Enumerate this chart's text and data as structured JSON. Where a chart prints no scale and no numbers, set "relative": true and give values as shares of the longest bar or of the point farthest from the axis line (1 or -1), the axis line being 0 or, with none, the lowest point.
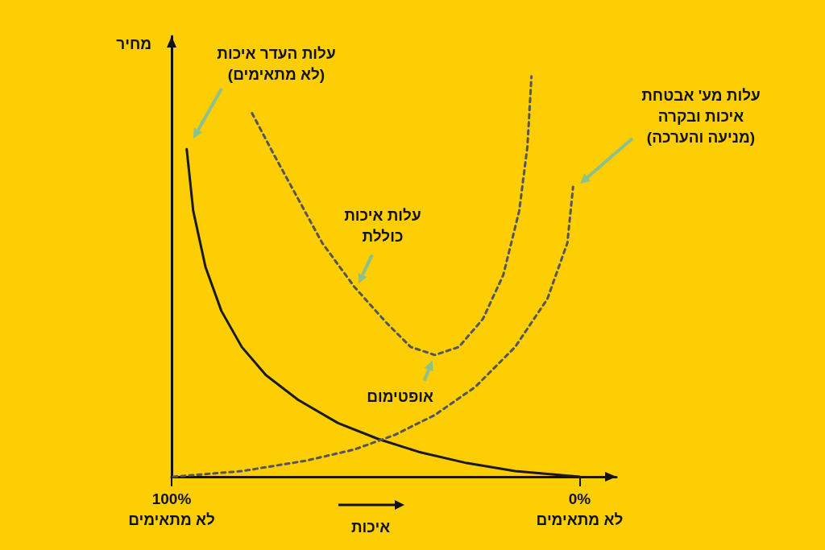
{
  "chart_data": {
    "type": "line",
    "relative": true,
    "ylabel": "מחיר",
    "xlabel": "איכות",
    "marker": "none",
    "xlim": [
      100,
      -9
    ],
    "xticks": [
      {
        "value": 100,
        "label": "100%\nלא מתאימים"
      },
      {
        "value": 0,
        "label": "0%\nלא מתאימים"
      }
    ],
    "series": [
      {
        "color": "#1a1a1a",
        "line_style": "solid",
        "x": [
          96.3,
          94.7,
          91.7,
          87.8,
          82.8,
          76.9,
          69.0,
          59.2,
          49.3,
          39.4,
          27.6,
          15.8,
          0
        ],
        "values": [
          0.818,
          0.664,
          0.524,
          0.414,
          0.324,
          0.254,
          0.192,
          0.134,
          0.094,
          0.062,
          0.034,
          0.014,
          0
        ]
      },
      {
        "color": "#555555",
        "line_style": "dashed",
        "x": [
          99.6,
          82.8,
          67.1,
          55.2,
          45.4,
          35.5,
          25.6,
          15.8,
          7.9,
          3.0,
          1.6
        ],
        "values": [
          0,
          0.014,
          0.04,
          0.068,
          0.104,
          0.154,
          0.224,
          0.324,
          0.444,
          0.584,
          0.724
        ]
      },
      {
        "color": "#555555",
        "line_style": "dashed",
        "x": [
          80.3,
          74.9,
          69.0,
          63.1,
          55.2,
          47.3,
          41.4,
          35.5,
          29.6,
          23.7,
          18.7,
          14.8,
          12.8,
          11.8
        ],
        "values": [
          0.908,
          0.804,
          0.694,
          0.584,
          0.474,
          0.384,
          0.324,
          0.304,
          0.324,
          0.394,
          0.504,
          0.664,
          0.824,
          1
        ]
      }
    ],
    "annotations": [
      "עלות העדר איכות\n(לא מתאימים)",
      {
        "text": "עלות איכות\nכוללת",
        "x": 54.6,
        "y": 0.474
      },
      {
        "text": "אופטימום",
        "x": 35.5,
        "y": 0.304
      },
      "עלות מע' אבטחת\nאיכות ובקרה\n(מניעה והערכה)"
    ]
  }
}
